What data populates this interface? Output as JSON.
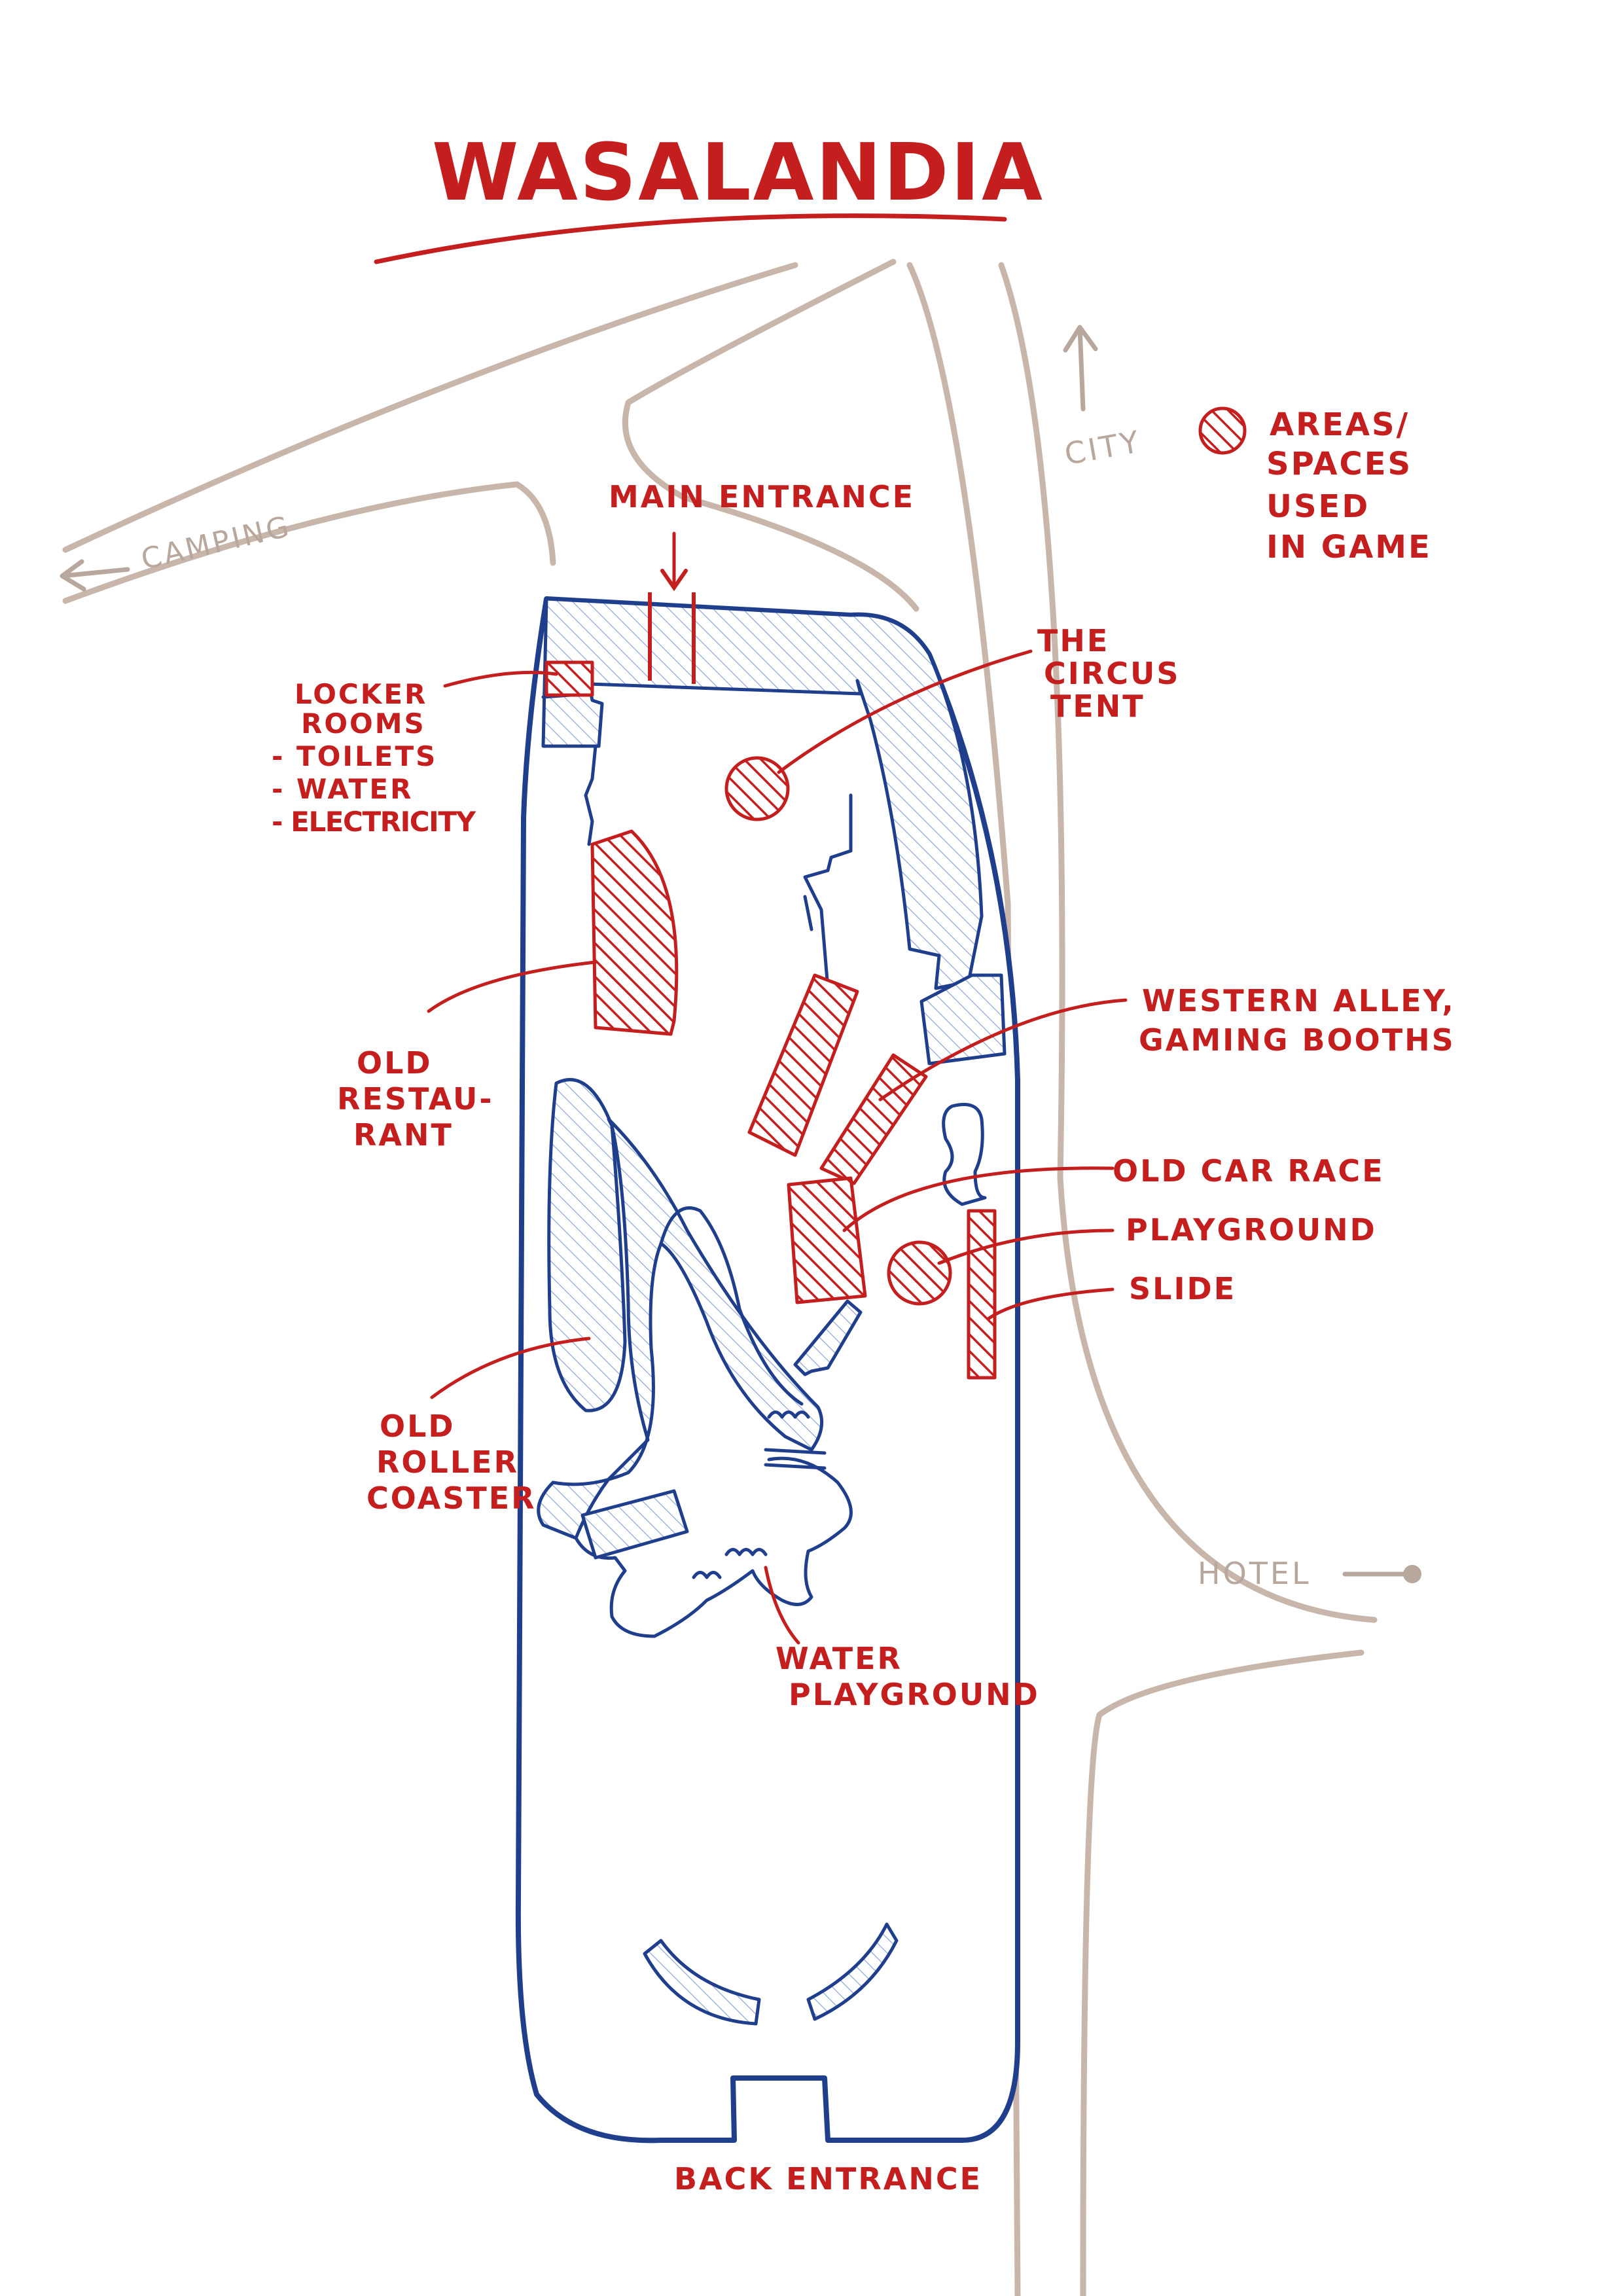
{
  "title": "WASALANDIA",
  "legend": {
    "lines": [
      "AREAS/",
      "SPACES",
      "USED",
      "IN GAME"
    ],
    "swatch_color": "#c41e1e"
  },
  "roads": {
    "camping": "CAMPING",
    "city": "CITY",
    "hotel": "HOTEL"
  },
  "entrances": {
    "main": "MAIN ENTRANCE",
    "back": "BACK ENTRANCE"
  },
  "areas": {
    "locker_rooms": [
      "LOCKER",
      "ROOMS",
      "- TOILETS",
      "- WATER",
      "- ELECTRICITY"
    ],
    "circus_tent": [
      "THE",
      "CIRCUS",
      "TENT"
    ],
    "old_restaurant": [
      "OLD",
      "RESTAU-",
      "RANT"
    ],
    "western_alley": [
      "WESTERN ALLEY,",
      "GAMING BOOTHS"
    ],
    "old_car_race": "OLD CAR RACE",
    "playground": "PLAYGROUND",
    "slide": "SLIDE",
    "old_roller_coaster": [
      "OLD",
      "ROLLER",
      "COASTER"
    ],
    "water_playground": [
      "WATER",
      "PLAYGROUND"
    ]
  },
  "colors": {
    "ink_red": "#c41e1e",
    "ink_blue": "#1f3f8c",
    "road": "#c8b6aa",
    "road_label": "#b8a79c"
  },
  "icons": [
    "arrow-left-icon",
    "arrow-up-icon",
    "arrow-right-icon",
    "arrow-down-icon"
  ]
}
